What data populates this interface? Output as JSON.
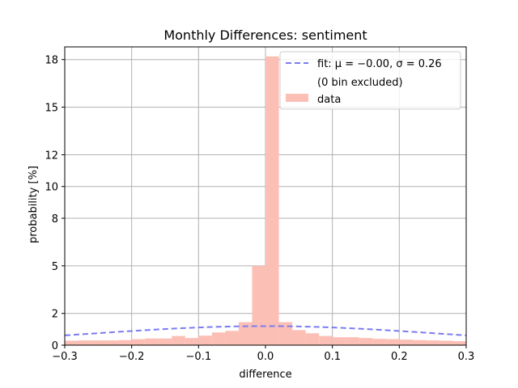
{
  "chart_data": {
    "type": "bar",
    "title": "Monthly Differences: sentiment",
    "xlabel": "difference",
    "ylabel": "probability [%]",
    "xlim": [
      -0.3,
      0.3
    ],
    "ylim": [
      0,
      18.8
    ],
    "x_ticks": [
      -0.3,
      -0.2,
      -0.1,
      0.0,
      0.1,
      0.2,
      0.3
    ],
    "x_tick_labels": [
      "−0.3",
      "−0.2",
      "−0.1",
      "0.0",
      "0.1",
      "0.2",
      "0.3"
    ],
    "y_ticks": [
      0,
      2,
      5,
      8,
      10,
      12,
      15,
      18
    ],
    "y_tick_labels": [
      "0",
      "2",
      "5",
      "8",
      "10",
      "12",
      "15",
      "18"
    ],
    "grid": true,
    "legend_position": "top-right",
    "bin_width": 0.02,
    "bins": [
      {
        "x0": -0.3,
        "x1": -0.28,
        "value": 0.28
      },
      {
        "x0": -0.28,
        "x1": -0.26,
        "value": 0.3
      },
      {
        "x0": -0.26,
        "x1": -0.24,
        "value": 0.3
      },
      {
        "x0": -0.24,
        "x1": -0.22,
        "value": 0.3
      },
      {
        "x0": -0.22,
        "x1": -0.2,
        "value": 0.32
      },
      {
        "x0": -0.2,
        "x1": -0.18,
        "value": 0.38
      },
      {
        "x0": -0.18,
        "x1": -0.16,
        "value": 0.42
      },
      {
        "x0": -0.16,
        "x1": -0.14,
        "value": 0.42
      },
      {
        "x0": -0.14,
        "x1": -0.12,
        "value": 0.58
      },
      {
        "x0": -0.12,
        "x1": -0.1,
        "value": 0.45
      },
      {
        "x0": -0.1,
        "x1": -0.08,
        "value": 0.6
      },
      {
        "x0": -0.08,
        "x1": -0.06,
        "value": 0.8
      },
      {
        "x0": -0.06,
        "x1": -0.04,
        "value": 0.9
      },
      {
        "x0": -0.04,
        "x1": -0.02,
        "value": 1.45
      },
      {
        "x0": -0.02,
        "x1": 0.0,
        "value": 5.0
      },
      {
        "x0": 0.0,
        "x1": 0.02,
        "value": 18.2
      },
      {
        "x0": 0.02,
        "x1": 0.04,
        "value": 1.45
      },
      {
        "x0": 0.04,
        "x1": 0.06,
        "value": 0.95
      },
      {
        "x0": 0.06,
        "x1": 0.08,
        "value": 0.75
      },
      {
        "x0": 0.08,
        "x1": 0.1,
        "value": 0.58
      },
      {
        "x0": 0.1,
        "x1": 0.12,
        "value": 0.5
      },
      {
        "x0": 0.12,
        "x1": 0.14,
        "value": 0.5
      },
      {
        "x0": 0.14,
        "x1": 0.16,
        "value": 0.45
      },
      {
        "x0": 0.16,
        "x1": 0.18,
        "value": 0.4
      },
      {
        "x0": 0.18,
        "x1": 0.2,
        "value": 0.38
      },
      {
        "x0": 0.2,
        "x1": 0.22,
        "value": 0.35
      },
      {
        "x0": 0.22,
        "x1": 0.24,
        "value": 0.32
      },
      {
        "x0": 0.24,
        "x1": 0.26,
        "value": 0.3
      },
      {
        "x0": 0.26,
        "x1": 0.28,
        "value": 0.28
      },
      {
        "x0": 0.28,
        "x1": 0.3,
        "value": 0.25
      }
    ],
    "fit": {
      "mu": 0.0,
      "sigma": 0.26,
      "scale": 1.2
    },
    "legend": {
      "fit_label": "fit: μ = −0.00,  σ = 0.26",
      "note_label": "(0 bin excluded)",
      "data_label": "data"
    },
    "colors": {
      "bar": "#fbbfb5",
      "fit": "#7b7bf2",
      "grid": "#b0b0b0",
      "axis": "#000000"
    }
  }
}
